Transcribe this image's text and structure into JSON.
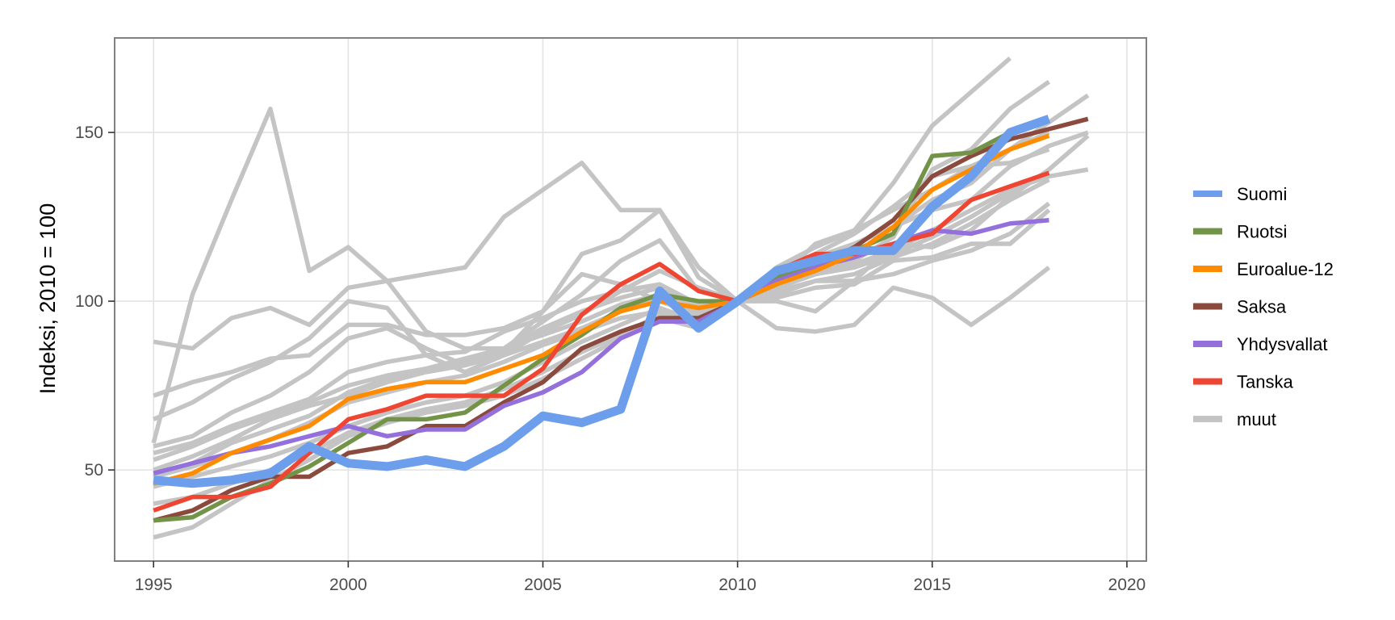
{
  "chart_data": {
    "type": "line",
    "title": "",
    "xlabel": "",
    "ylabel": "Indeksi, 2010 = 100",
    "xlim": [
      1994,
      2020.5
    ],
    "ylim": [
      23,
      178
    ],
    "x_ticks": [
      1995,
      2000,
      2005,
      2010,
      2015,
      2020
    ],
    "y_ticks": [
      50,
      100,
      150
    ],
    "grid": true,
    "legend_position": "right",
    "series": [
      {
        "name": "muut",
        "color": "#c4c4c4",
        "x": [
          1995,
          1996,
          1997,
          1998,
          1999,
          2000,
          2001,
          2002,
          2003,
          2004,
          2005,
          2006,
          2007,
          2008,
          2009,
          2010,
          2011,
          2012,
          2013,
          2014,
          2015,
          2016,
          2017,
          2018
        ],
        "values": [
          88,
          86,
          95,
          98,
          93,
          104,
          106,
          108,
          110,
          125,
          133,
          141,
          127,
          127,
          110,
          100,
          110,
          116,
          121,
          135,
          152,
          162,
          172,
          null
        ]
      },
      {
        "name": "",
        "color": "#c4c4c4",
        "x": [
          1995,
          1996,
          1997,
          1998,
          1999,
          2000,
          2001,
          2002,
          2003,
          2004,
          2005,
          2006,
          2007,
          2008,
          2009,
          2010,
          2011,
          2012,
          2013,
          2014,
          2015,
          2016,
          2017,
          2018
        ],
        "values": [
          58,
          102,
          130,
          157,
          109,
          116,
          106,
          91,
          86,
          86,
          94,
          102,
          112,
          118,
          103,
          100,
          105,
          108,
          112,
          119,
          139,
          145,
          157,
          165
        ]
      },
      {
        "name": "",
        "color": "#c4c4c4",
        "x": [
          1995,
          1996,
          1997,
          1998,
          1999,
          2000,
          2001,
          2002,
          2003,
          2004,
          2005,
          2006,
          2007,
          2008,
          2009,
          2010,
          2011,
          2012,
          2013,
          2014,
          2015,
          2016,
          2017,
          2018,
          2019
        ],
        "values": [
          72,
          76,
          79,
          83,
          84,
          93,
          93,
          90,
          90,
          92,
          97,
          114,
          118,
          127,
          107,
          100,
          107,
          110,
          114,
          122,
          130,
          135,
          145,
          153,
          161
        ]
      },
      {
        "name": "",
        "color": "#c4c4c4",
        "x": [
          1995,
          1996,
          1997,
          1998,
          1999,
          2000,
          2001,
          2002,
          2003,
          2004,
          2005,
          2006,
          2007,
          2008,
          2009,
          2010,
          2011,
          2012,
          2013,
          2014,
          2015,
          2016,
          2017,
          2018,
          2019
        ],
        "values": [
          65,
          70,
          77,
          82,
          89,
          100,
          98,
          84,
          79,
          84,
          91,
          96,
          103,
          109,
          104,
          100,
          100,
          97,
          106,
          117,
          116,
          121,
          131,
          139,
          149
        ]
      },
      {
        "name": "",
        "color": "#c4c4c4",
        "x": [
          1995,
          1996,
          1997,
          1998,
          1999,
          2000,
          2001,
          2002,
          2003,
          2004,
          2005,
          2006,
          2007,
          2008,
          2009,
          2010,
          2011,
          2012,
          2013,
          2014,
          2015,
          2016,
          2017,
          2018,
          2019
        ],
        "values": [
          57,
          60,
          67,
          72,
          79,
          89,
          92,
          86,
          81,
          85,
          97,
          108,
          105,
          100,
          96,
          100,
          92,
          91,
          93,
          104,
          101,
          93,
          101,
          110,
          null
        ]
      },
      {
        "name": "",
        "color": "#c4c4c4",
        "x": [
          1995,
          1996,
          1997,
          1998,
          1999,
          2000,
          2001,
          2002,
          2003,
          2004,
          2005,
          2006,
          2007,
          2008,
          2009,
          2010,
          2011,
          2012,
          2013,
          2014,
          2015,
          2016,
          2017,
          2018,
          2019
        ],
        "values": [
          55,
          58,
          63,
          67,
          71,
          79,
          82,
          84,
          85,
          91,
          95,
          100,
          103,
          105,
          99,
          100,
          105,
          113,
          117,
          122,
          127,
          130,
          140,
          146,
          150
        ]
      },
      {
        "name": "",
        "color": "#c4c4c4",
        "x": [
          1995,
          1996,
          1997,
          1998,
          1999,
          2000,
          2001,
          2002,
          2003,
          2004,
          2005,
          2006,
          2007,
          2008,
          2009,
          2010,
          2011,
          2012,
          2013,
          2014,
          2015,
          2016,
          2017,
          2018,
          2019
        ],
        "values": [
          53,
          57,
          62,
          66,
          70,
          75,
          78,
          80,
          82,
          86,
          90,
          94,
          99,
          102,
          97,
          100,
          106,
          114,
          120,
          128,
          137,
          140,
          141,
          145,
          null
        ]
      },
      {
        "name": "",
        "color": "#c4c4c4",
        "x": [
          1995,
          1996,
          1997,
          1998,
          1999,
          2000,
          2001,
          2002,
          2003,
          2004,
          2005,
          2006,
          2007,
          2008,
          2009,
          2010,
          2011,
          2012,
          2013,
          2014,
          2015,
          2016,
          2017,
          2018,
          2019
        ],
        "values": [
          50,
          54,
          59,
          65,
          69,
          72,
          76,
          79,
          81,
          84,
          88,
          92,
          97,
          101,
          96,
          100,
          104,
          108,
          111,
          115,
          121,
          127,
          133,
          137,
          139
        ]
      },
      {
        "name": "",
        "color": "#c4c4c4",
        "x": [
          1995,
          1996,
          1997,
          1998,
          1999,
          2000,
          2001,
          2002,
          2003,
          2004,
          2005,
          2006,
          2007,
          2008,
          2009,
          2010,
          2011,
          2012,
          2013,
          2014,
          2015,
          2016,
          2017,
          2018,
          2019
        ],
        "values": [
          48,
          51,
          55,
          59,
          64,
          70,
          73,
          76,
          78,
          82,
          87,
          91,
          95,
          97,
          95,
          100,
          102,
          106,
          106,
          108,
          112,
          115,
          120,
          129,
          null
        ]
      },
      {
        "name": "",
        "color": "#c4c4c4",
        "x": [
          1995,
          1996,
          1997,
          1998,
          1999,
          2000,
          2001,
          2002,
          2003,
          2004,
          2005,
          2006,
          2007,
          2008,
          2009,
          2010,
          2011,
          2012,
          2013,
          2014,
          2015,
          2016,
          2017,
          2018,
          2019
        ],
        "values": [
          45,
          48,
          51,
          54,
          58,
          63,
          67,
          70,
          72,
          76,
          82,
          88,
          93,
          98,
          94,
          100,
          101,
          104,
          105,
          112,
          113,
          117,
          117,
          127,
          null
        ]
      },
      {
        "name": "",
        "color": "#c4c4c4",
        "x": [
          1995,
          1996,
          1997,
          1998,
          1999,
          2000,
          2001,
          2002,
          2003,
          2004,
          2005,
          2006,
          2007,
          2008,
          2009,
          2010,
          2011,
          2012,
          2013,
          2014,
          2015,
          2016,
          2017,
          2018,
          2019
        ],
        "values": [
          40,
          42,
          46,
          50,
          55,
          61,
          65,
          68,
          70,
          74,
          79,
          85,
          90,
          96,
          93,
          100,
          103,
          106,
          108,
          113,
          117,
          123,
          130,
          136,
          null
        ]
      },
      {
        "name": "",
        "color": "#c4c4c4",
        "x": [
          1995,
          1996,
          1997,
          1998,
          1999,
          2000,
          2001,
          2002,
          2003,
          2004,
          2005,
          2006,
          2007,
          2008,
          2009,
          2010,
          2011,
          2012,
          2013,
          2014,
          2015,
          2016,
          2017,
          2018,
          2019
        ],
        "values": [
          30,
          33,
          40,
          47,
          53,
          60,
          64,
          67,
          69,
          72,
          77,
          83,
          89,
          95,
          92,
          100,
          104,
          108,
          110,
          114,
          119,
          125,
          132,
          138,
          null
        ]
      },
      {
        "name": "",
        "color": "#c4c4c4",
        "x": [
          1995,
          1996,
          1997,
          1998,
          1999,
          2000,
          2001,
          2002,
          2003,
          2004,
          2005,
          2006,
          2007,
          2008,
          2009,
          2010,
          2011,
          2012,
          2013,
          2014,
          2015,
          2016,
          2017,
          2018,
          2019
        ],
        "values": [
          48,
          52,
          58,
          62,
          66,
          73,
          77,
          80,
          83,
          86,
          92,
          97,
          101,
          104,
          98,
          100,
          106,
          117,
          121,
          127,
          133,
          140,
          145,
          150,
          null
        ]
      },
      {
        "name": "Saksa",
        "color": "#8b4a3e",
        "x": [
          1995,
          1996,
          1997,
          1998,
          1999,
          2000,
          2001,
          2002,
          2003,
          2004,
          2005,
          2006,
          2007,
          2008,
          2009,
          2010,
          2011,
          2012,
          2013,
          2014,
          2015,
          2016,
          2017,
          2018,
          2019
        ],
        "values": [
          35,
          38,
          44,
          48,
          48,
          55,
          57,
          63,
          63,
          70,
          76,
          86,
          91,
          95,
          95,
          100,
          105,
          110,
          116,
          124,
          137,
          143,
          148,
          151,
          154
        ]
      },
      {
        "name": "Ruotsi",
        "color": "#739448",
        "x": [
          1995,
          1996,
          1997,
          1998,
          1999,
          2000,
          2001,
          2002,
          2003,
          2004,
          2005,
          2006,
          2007,
          2008,
          2009,
          2010,
          2011,
          2012,
          2013,
          2014,
          2015,
          2016,
          2017,
          2018
        ],
        "values": [
          35,
          36,
          42,
          46,
          51,
          58,
          65,
          65,
          67,
          75,
          83,
          90,
          98,
          102,
          100,
          100,
          107,
          111,
          115,
          120,
          143,
          144,
          150,
          null
        ]
      },
      {
        "name": "Yhdysvallat",
        "color": "#9370db",
        "x": [
          1995,
          1996,
          1997,
          1998,
          1999,
          2000,
          2001,
          2002,
          2003,
          2004,
          2005,
          2006,
          2007,
          2008,
          2009,
          2010,
          2011,
          2012,
          2013,
          2014,
          2015,
          2016,
          2017,
          2018
        ],
        "values": [
          49,
          52,
          55,
          57,
          60,
          63,
          60,
          62,
          62,
          69,
          73,
          79,
          89,
          94,
          94,
          100,
          106,
          110,
          113,
          117,
          121,
          120,
          123,
          124
        ]
      },
      {
        "name": "Euroalue-12",
        "color": "#ff8c00",
        "x": [
          1995,
          1996,
          1997,
          1998,
          1999,
          2000,
          2001,
          2002,
          2003,
          2004,
          2005,
          2006,
          2007,
          2008,
          2009,
          2010,
          2011,
          2012,
          2013,
          2014,
          2015,
          2016,
          2017,
          2018
        ],
        "values": [
          46,
          49,
          55,
          59,
          63,
          71,
          74,
          76,
          76,
          80,
          84,
          91,
          97,
          100,
          98,
          100,
          105,
          109,
          114,
          122,
          133,
          139,
          145,
          149
        ]
      },
      {
        "name": "Tanska",
        "color": "#ee4632",
        "x": [
          1995,
          1996,
          1997,
          1998,
          1999,
          2000,
          2001,
          2002,
          2003,
          2004,
          2005,
          2006,
          2007,
          2008,
          2009,
          2010,
          2011,
          2012,
          2013,
          2014,
          2015,
          2016,
          2017,
          2018
        ],
        "values": [
          38,
          42,
          42,
          45,
          55,
          65,
          68,
          72,
          72,
          72,
          80,
          96,
          105,
          111,
          103,
          100,
          109,
          114,
          114,
          117,
          120,
          130,
          134,
          138
        ]
      },
      {
        "name": "Suomi",
        "color": "#6d9eeb",
        "x": [
          1995,
          1996,
          1997,
          1998,
          1999,
          2000,
          2001,
          2002,
          2003,
          2004,
          2005,
          2006,
          2007,
          2008,
          2009,
          2010,
          2011,
          2012,
          2013,
          2014,
          2015,
          2016,
          2017,
          2018
        ],
        "values": [
          47,
          46,
          47,
          49,
          57,
          52,
          51,
          53,
          51,
          57,
          66,
          64,
          68,
          103,
          92,
          100,
          109,
          112,
          115,
          115,
          128,
          137,
          150,
          154
        ]
      }
    ],
    "legend": [
      {
        "name": "Suomi",
        "color": "#6d9eeb"
      },
      {
        "name": "Ruotsi",
        "color": "#739448"
      },
      {
        "name": "Euroalue-12",
        "color": "#ff8c00"
      },
      {
        "name": "Saksa",
        "color": "#8b4a3e"
      },
      {
        "name": "Yhdysvallat",
        "color": "#9370db"
      },
      {
        "name": "Tanska",
        "color": "#ee4632"
      },
      {
        "name": "muut",
        "color": "#c4c4c4"
      }
    ]
  }
}
